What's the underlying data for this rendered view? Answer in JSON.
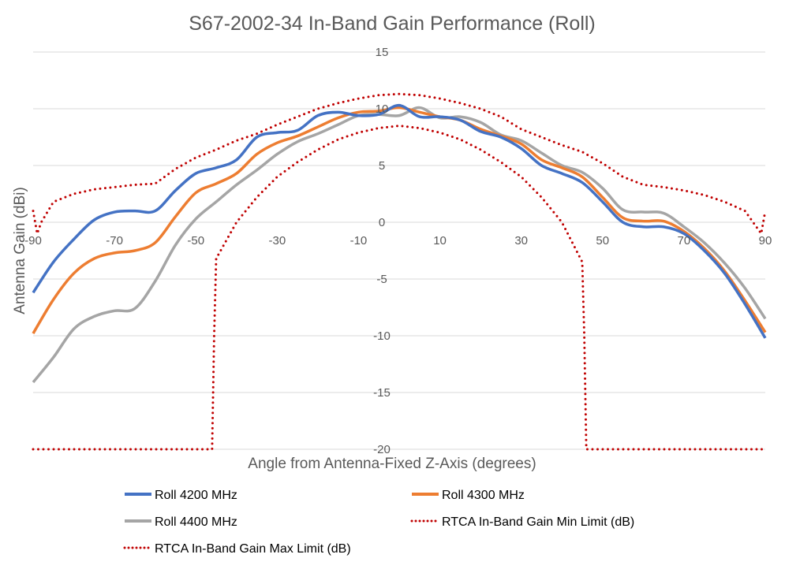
{
  "chart_data": {
    "type": "line",
    "title": "S67-2002-34 In-Band Gain Performance (Roll)",
    "xlabel": "Angle from Antenna-Fixed Z-Axis (degrees)",
    "ylabel": "Antenna Gain (dBi)",
    "xlim": [
      -90,
      90
    ],
    "ylim": [
      -20,
      15
    ],
    "x_ticks": [
      -90,
      -70,
      -50,
      -30,
      -10,
      10,
      30,
      50,
      70,
      90
    ],
    "x_tick_labels": [
      "-90",
      "-70",
      "-50",
      "-30",
      "-10",
      "10",
      "30",
      "50",
      "70",
      "90"
    ],
    "y_ticks": [
      15,
      10,
      5,
      0,
      -5,
      -10,
      -15,
      -20
    ],
    "y_tick_labels": [
      "15",
      "10",
      "5",
      "0",
      "-5",
      "-10",
      "-15",
      "-20"
    ],
    "grid": true,
    "legend_position": "bottom",
    "x": [
      -90,
      -85,
      -80,
      -75,
      -70,
      -65,
      -60,
      -55,
      -50,
      -45,
      -40,
      -35,
      -30,
      -25,
      -20,
      -15,
      -10,
      -5,
      0,
      5,
      10,
      15,
      20,
      25,
      30,
      35,
      40,
      45,
      50,
      55,
      60,
      65,
      70,
      75,
      80,
      85,
      90
    ],
    "series": [
      {
        "name": "Roll 4200 MHz",
        "color": "#4472C4",
        "style": "solid",
        "values": [
          -6.2,
          -3.5,
          -1.5,
          0.2,
          0.9,
          1.0,
          1.0,
          2.8,
          4.3,
          4.8,
          5.5,
          7.5,
          7.9,
          8.1,
          9.4,
          9.7,
          9.4,
          9.5,
          10.3,
          9.3,
          9.3,
          9.0,
          8.0,
          7.5,
          6.5,
          5.0,
          4.3,
          3.5,
          1.8,
          0.0,
          -0.4,
          -0.4,
          -1.0,
          -2.5,
          -4.5,
          -7.2,
          -10.2
        ]
      },
      {
        "name": "Roll 4300 MHz",
        "color": "#ED7D31",
        "style": "solid",
        "values": [
          -9.8,
          -6.8,
          -4.5,
          -3.2,
          -2.7,
          -2.5,
          -1.8,
          0.5,
          2.6,
          3.4,
          4.3,
          6.0,
          7.0,
          7.6,
          8.4,
          9.2,
          9.7,
          9.8,
          10.1,
          9.7,
          9.3,
          9.0,
          8.2,
          7.6,
          6.9,
          5.5,
          4.8,
          4.0,
          2.2,
          0.4,
          0.1,
          0.1,
          -0.8,
          -2.3,
          -4.3,
          -6.9,
          -9.7
        ]
      },
      {
        "name": "Roll 4400 MHz",
        "color": "#A5A5A5",
        "style": "solid",
        "values": [
          -14.1,
          -11.9,
          -9.4,
          -8.3,
          -7.8,
          -7.6,
          -5.2,
          -2.0,
          0.3,
          1.8,
          3.3,
          4.6,
          6.0,
          7.1,
          7.8,
          8.6,
          9.4,
          9.5,
          9.4,
          10.1,
          9.2,
          9.3,
          8.8,
          7.7,
          7.2,
          6.1,
          5.0,
          4.4,
          3.0,
          1.1,
          0.9,
          0.8,
          -0.4,
          -1.8,
          -3.6,
          -5.8,
          -8.5
        ]
      },
      {
        "name": "RTCA In-Band Gain Min Limit (dB)",
        "color": "#C00000",
        "style": "dotted",
        "x": [
          -90,
          -46,
          -45.5,
          -45,
          -40,
          -35,
          -30,
          -25,
          -20,
          -15,
          -10,
          -5,
          0,
          5,
          10,
          15,
          20,
          25,
          30,
          35,
          40,
          45,
          45.5,
          46,
          90
        ],
        "values": [
          -20,
          -20,
          -10,
          -3.2,
          0.0,
          2.2,
          4.0,
          5.3,
          6.4,
          7.3,
          7.9,
          8.3,
          8.5,
          8.3,
          7.9,
          7.3,
          6.4,
          5.3,
          4.0,
          2.2,
          0.0,
          -3.5,
          -10,
          -20,
          -20
        ]
      },
      {
        "name": "RTCA In-Band Gain Max Limit (dB)",
        "color": "#C00000",
        "style": "dotted",
        "x": [
          -90,
          -89,
          -88,
          -85,
          -80,
          -75,
          -70,
          -65,
          -60,
          -55,
          -50,
          -45,
          -40,
          -35,
          -30,
          -25,
          -20,
          -15,
          -10,
          -5,
          0,
          5,
          10,
          15,
          20,
          25,
          30,
          35,
          40,
          45,
          50,
          55,
          60,
          65,
          70,
          75,
          80,
          85,
          88,
          89,
          90
        ],
        "values": [
          1.0,
          -1.0,
          0.0,
          1.8,
          2.5,
          2.9,
          3.1,
          3.3,
          3.4,
          4.7,
          5.7,
          6.4,
          7.2,
          7.8,
          8.6,
          9.3,
          10.0,
          10.5,
          10.9,
          11.2,
          11.3,
          11.2,
          10.9,
          10.5,
          10.0,
          9.3,
          8.2,
          7.5,
          6.8,
          6.2,
          5.2,
          4.0,
          3.3,
          3.1,
          2.8,
          2.4,
          1.8,
          1.0,
          -0.5,
          -1.0,
          1.0
        ]
      }
    ]
  }
}
